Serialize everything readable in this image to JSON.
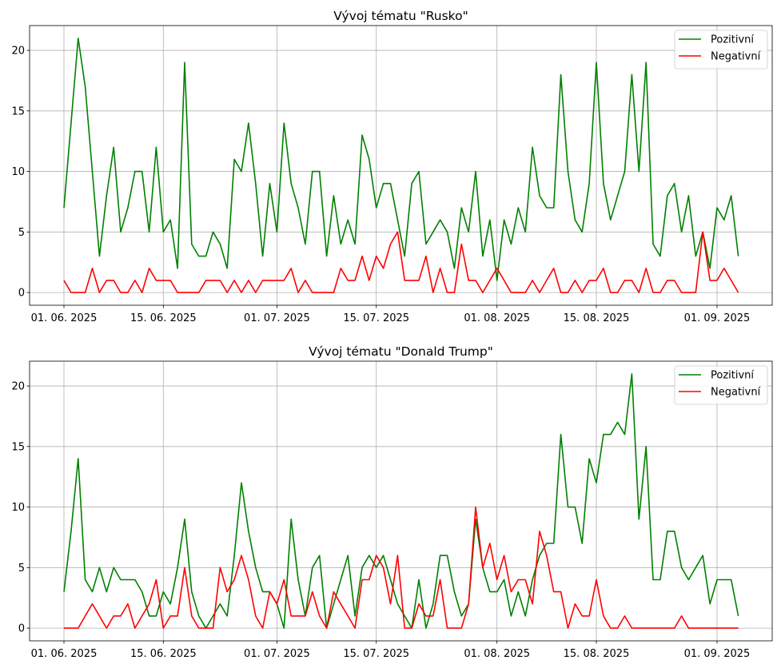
{
  "chart_data": [
    {
      "type": "line",
      "title": "Vývoj tématu \"Rusko\"",
      "xlabel": "",
      "ylabel": "",
      "x_start": "2025-06-01",
      "x_step": "1 day",
      "x_tick_labels": [
        "01. 06. 2025",
        "15. 06. 2025",
        "01. 07. 2025",
        "15. 07. 2025",
        "01. 08. 2025",
        "15. 08. 2025",
        "01. 09. 2025"
      ],
      "x_tick_days": [
        0,
        14,
        30,
        44,
        61,
        75,
        92
      ],
      "y_ticks": [
        0,
        5,
        10,
        15,
        20
      ],
      "ylim": [
        -1.05,
        22.05
      ],
      "grid": true,
      "legend_position": "top-right",
      "series": [
        {
          "name": "Pozitivní",
          "color": "#008000",
          "values": [
            7,
            14,
            21,
            17,
            10,
            3,
            8,
            12,
            5,
            7,
            10,
            10,
            5,
            12,
            5,
            6,
            2,
            19,
            4,
            3,
            3,
            5,
            4,
            2,
            11,
            10,
            14,
            9,
            3,
            9,
            5,
            14,
            9,
            7,
            4,
            10,
            10,
            3,
            8,
            4,
            6,
            4,
            13,
            11,
            7,
            9,
            9,
            6,
            3,
            9,
            10,
            4,
            5,
            6,
            5,
            2,
            7,
            5,
            10,
            3,
            6,
            1,
            6,
            4,
            7,
            5,
            12,
            8,
            7,
            7,
            18,
            10,
            6,
            5,
            9,
            19,
            9,
            6,
            8,
            10,
            18,
            10,
            19,
            4,
            3,
            8,
            9,
            5,
            8,
            3,
            5,
            2,
            7,
            6,
            8,
            3
          ]
        },
        {
          "name": "Negativní",
          "color": "#ff0000",
          "values": [
            1,
            0,
            0,
            0,
            2,
            0,
            1,
            1,
            0,
            0,
            1,
            0,
            2,
            1,
            1,
            1,
            0,
            0,
            0,
            0,
            1,
            1,
            1,
            0,
            1,
            0,
            1,
            0,
            1,
            1,
            1,
            1,
            2,
            0,
            1,
            0,
            0,
            0,
            0,
            2,
            1,
            1,
            3,
            1,
            3,
            2,
            4,
            5,
            1,
            1,
            1,
            3,
            0,
            2,
            0,
            0,
            4,
            1,
            1,
            0,
            1,
            2,
            1,
            0,
            0,
            0,
            1,
            0,
            1,
            2,
            0,
            0,
            1,
            0,
            1,
            1,
            2,
            0,
            0,
            1,
            1,
            0,
            2,
            0,
            0,
            1,
            1,
            0,
            0,
            0,
            5,
            1,
            1,
            2,
            1,
            0
          ]
        }
      ]
    },
    {
      "type": "line",
      "title": "Vývoj tématu \"Donald Trump\"",
      "xlabel": "",
      "ylabel": "",
      "x_start": "2025-06-01",
      "x_step": "1 day",
      "x_tick_labels": [
        "01. 06. 2025",
        "15. 06. 2025",
        "01. 07. 2025",
        "15. 07. 2025",
        "01. 08. 2025",
        "15. 08. 2025",
        "01. 09. 2025"
      ],
      "x_tick_days": [
        0,
        14,
        30,
        44,
        61,
        75,
        92
      ],
      "y_ticks": [
        0,
        5,
        10,
        15,
        20
      ],
      "ylim": [
        -1.05,
        22.05
      ],
      "grid": true,
      "legend_position": "top-right",
      "series": [
        {
          "name": "Pozitivní",
          "color": "#008000",
          "values": [
            3,
            8,
            14,
            4,
            3,
            5,
            3,
            5,
            4,
            4,
            4,
            3,
            1,
            1,
            3,
            2,
            5,
            9,
            3,
            1,
            0,
            1,
            2,
            1,
            6,
            12,
            8,
            5,
            3,
            3,
            2,
            0,
            9,
            4,
            1,
            5,
            6,
            0,
            2,
            4,
            6,
            1,
            5,
            6,
            5,
            6,
            4,
            2,
            1,
            0,
            4,
            0,
            2,
            6,
            6,
            3,
            1,
            2,
            9,
            5,
            3,
            3,
            4,
            1,
            3,
            1,
            4,
            6,
            7,
            7,
            16,
            10,
            10,
            7,
            14,
            12,
            16,
            16,
            17,
            16,
            21,
            9,
            15,
            4,
            4,
            8,
            8,
            5,
            4,
            5,
            6,
            2,
            4,
            4,
            4,
            1
          ]
        },
        {
          "name": "Negativní",
          "color": "#ff0000",
          "values": [
            0,
            0,
            0,
            1,
            2,
            1,
            0,
            1,
            1,
            2,
            0,
            1,
            2,
            4,
            0,
            1,
            1,
            5,
            1,
            0,
            0,
            0,
            5,
            3,
            4,
            6,
            4,
            1,
            0,
            3,
            2,
            4,
            1,
            1,
            1,
            3,
            1,
            0,
            3,
            2,
            1,
            0,
            4,
            4,
            6,
            5,
            2,
            6,
            0,
            0,
            2,
            1,
            1,
            4,
            0,
            0,
            0,
            2,
            10,
            5,
            7,
            4,
            6,
            3,
            4,
            4,
            2,
            8,
            6,
            3,
            3,
            0,
            2,
            1,
            1,
            4,
            1,
            0,
            0,
            1,
            0,
            0,
            0,
            0,
            0,
            0,
            0,
            1,
            0,
            0,
            0,
            0,
            0,
            0,
            0,
            0
          ]
        }
      ]
    }
  ]
}
